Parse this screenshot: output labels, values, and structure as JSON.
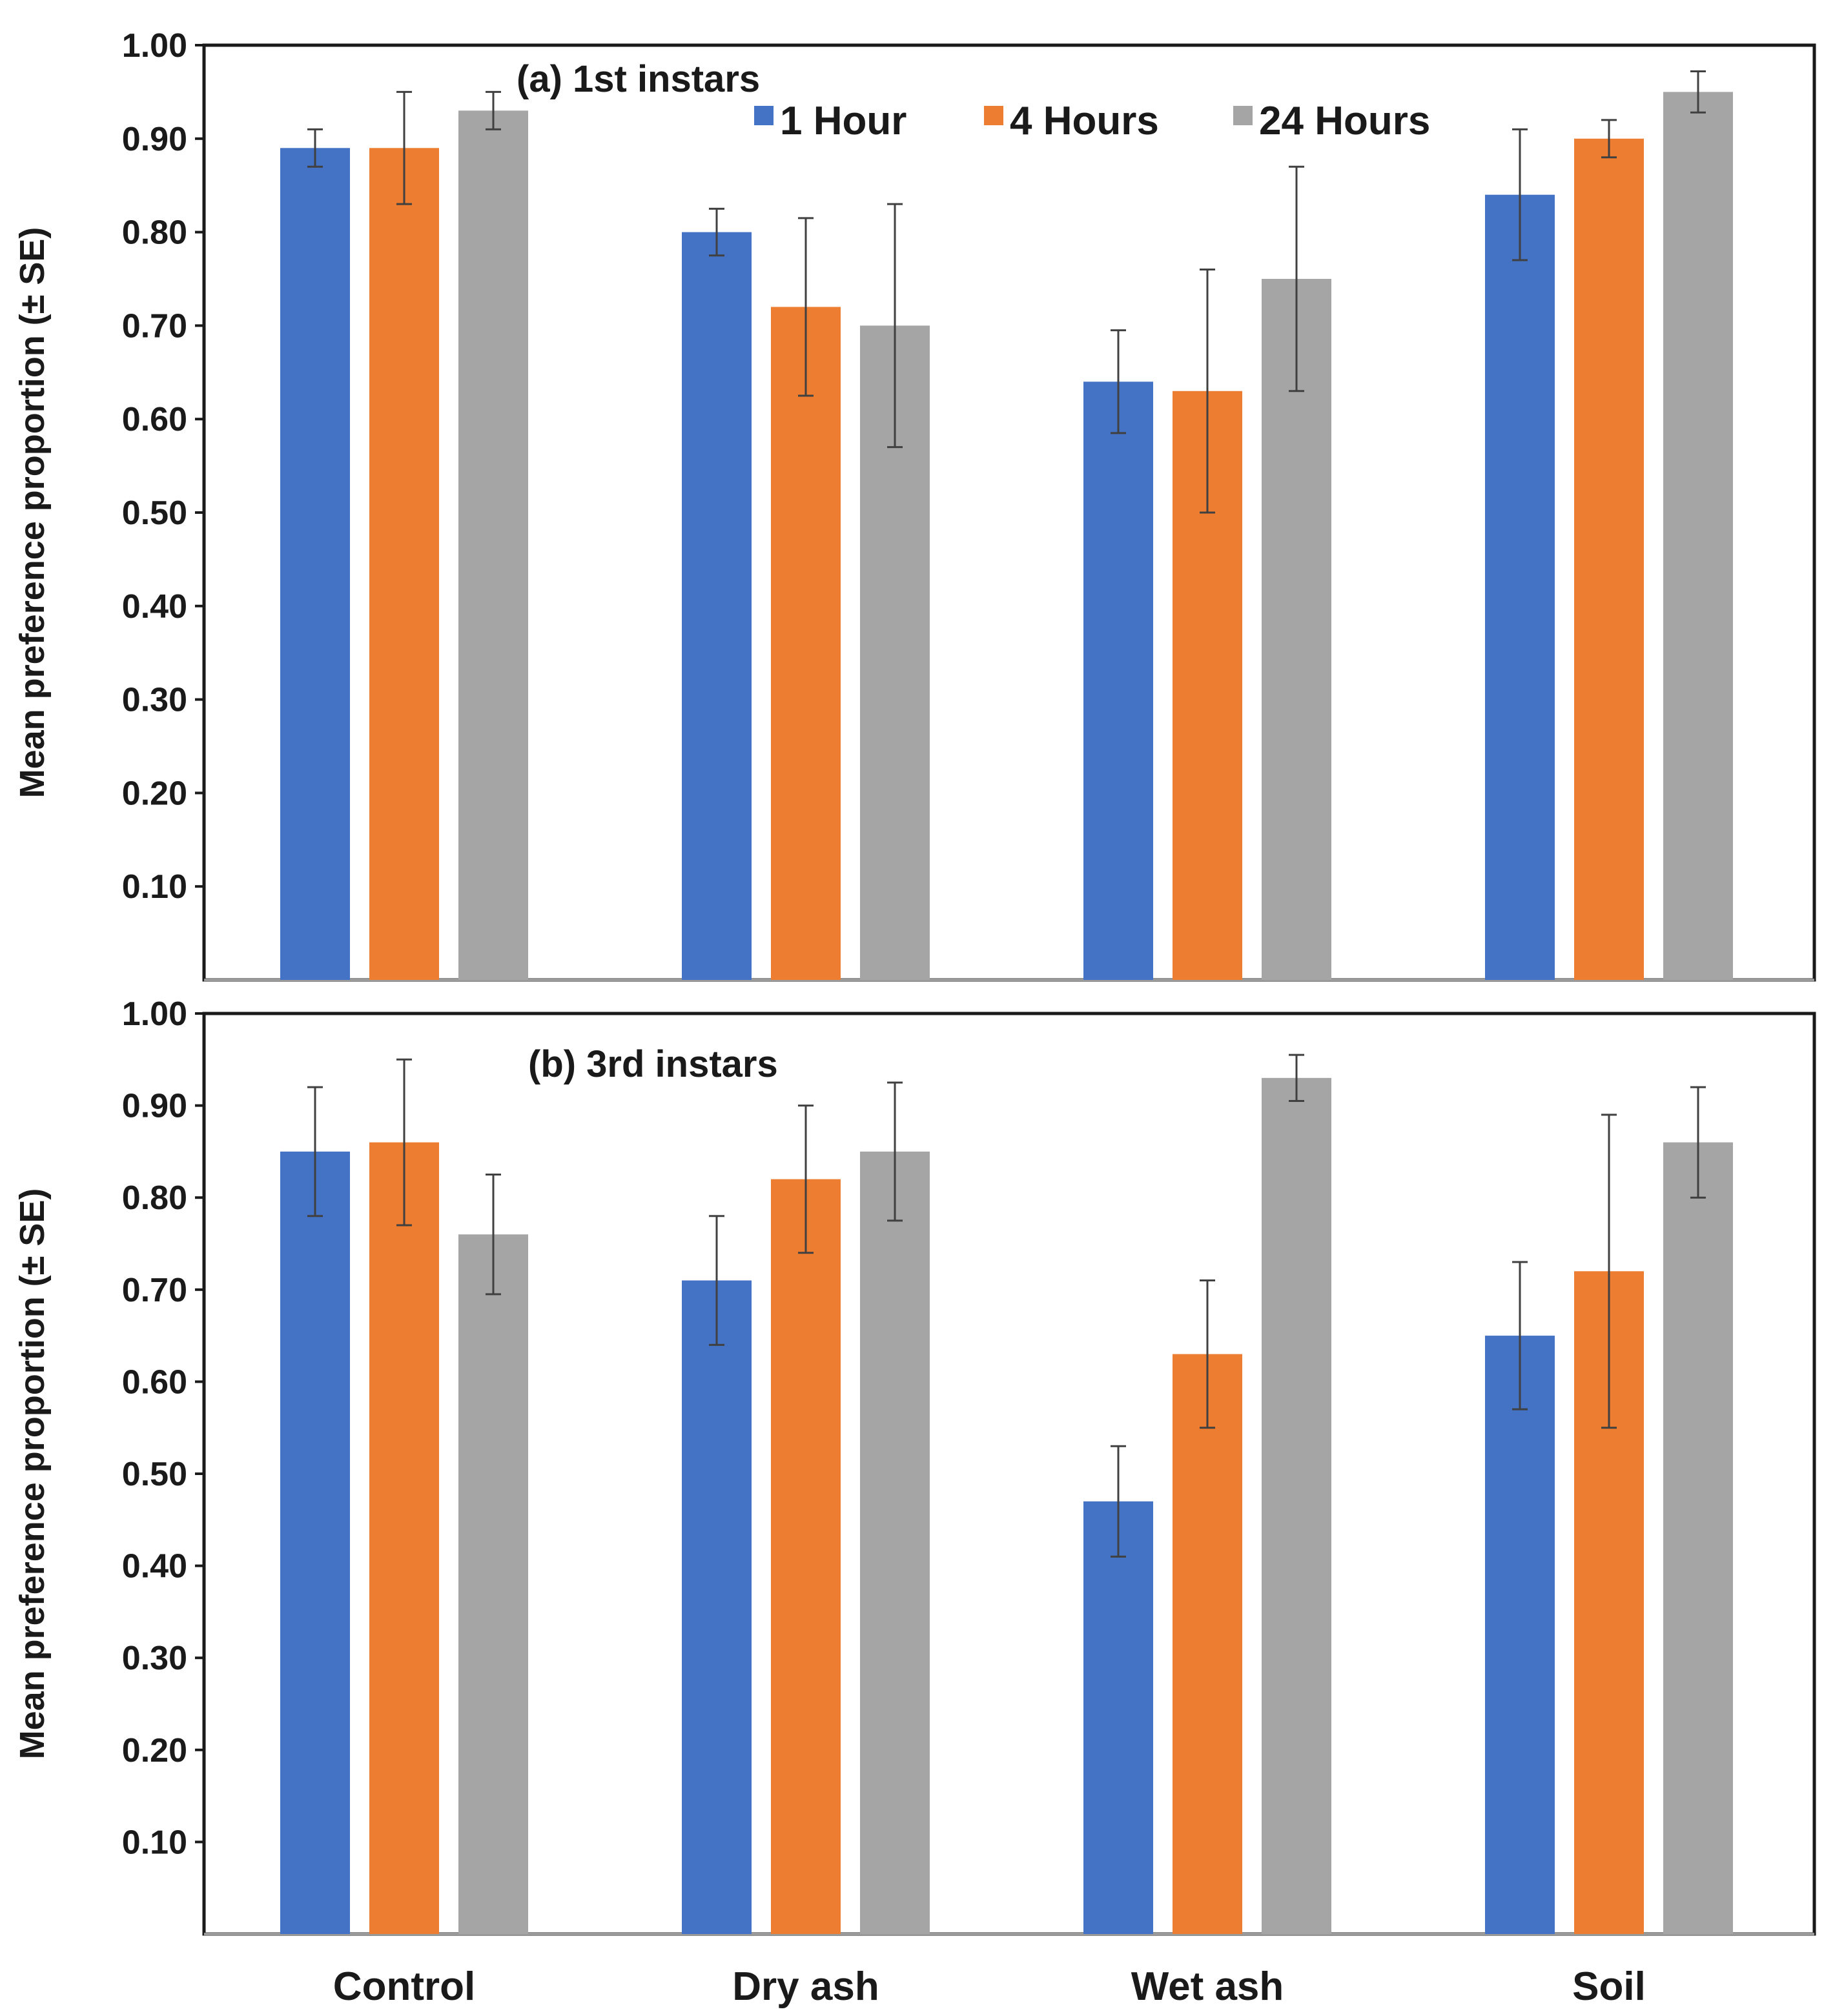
{
  "chart_data": [
    {
      "type": "bar",
      "panel": "a",
      "title": "(a) 1st instars",
      "xlabel": "",
      "ylabel": "Mean preference proportion (± SE)",
      "ylim": [
        0,
        1.0
      ],
      "yticks": [
        "0.10",
        "0.20",
        "0.30",
        "0.40",
        "0.50",
        "0.60",
        "0.70",
        "0.80",
        "0.90",
        "1.00"
      ],
      "grid": false,
      "legend_position": "top-right",
      "categories": [
        "Control",
        "Dry ash",
        "Wet ash",
        "Soil"
      ],
      "series": [
        {
          "name": "1 Hour",
          "color": "#4472C4",
          "values": [
            0.89,
            0.8,
            0.64,
            0.84
          ],
          "se": [
            0.02,
            0.025,
            0.055,
            0.07
          ]
        },
        {
          "name": "4 Hours",
          "color": "#ED7D31",
          "values": [
            0.89,
            0.72,
            0.63,
            0.9
          ],
          "se": [
            0.06,
            0.095,
            0.13,
            0.02
          ]
        },
        {
          "name": "24 Hours",
          "color": "#A5A5A5",
          "values": [
            0.93,
            0.7,
            0.75,
            0.95
          ],
          "se": [
            0.02,
            0.13,
            0.12,
            0.022
          ]
        }
      ]
    },
    {
      "type": "bar",
      "panel": "b",
      "title": "(b) 3rd instars",
      "xlabel": "",
      "ylabel": "Mean preference proportion (± SE)",
      "ylim": [
        0,
        1.0
      ],
      "yticks": [
        "0.10",
        "0.20",
        "0.30",
        "0.40",
        "0.50",
        "0.60",
        "0.70",
        "0.80",
        "0.90",
        "1.00"
      ],
      "grid": false,
      "categories": [
        "Control",
        "Dry ash",
        "Wet ash",
        "Soil"
      ],
      "series": [
        {
          "name": "1 Hour",
          "color": "#4472C4",
          "values": [
            0.85,
            0.71,
            0.47,
            0.65
          ],
          "se": [
            0.07,
            0.07,
            0.06,
            0.08
          ]
        },
        {
          "name": "4 Hours",
          "color": "#ED7D31",
          "values": [
            0.86,
            0.82,
            0.63,
            0.72
          ],
          "se": [
            0.09,
            0.08,
            0.08,
            0.17
          ]
        },
        {
          "name": "24 Hours",
          "color": "#A5A5A5",
          "values": [
            0.76,
            0.85,
            0.93,
            0.86
          ],
          "se": [
            0.065,
            0.075,
            0.025,
            0.06
          ]
        }
      ]
    }
  ],
  "colors": {
    "axis": "#1a1a1a",
    "errorbar": "#404040"
  }
}
